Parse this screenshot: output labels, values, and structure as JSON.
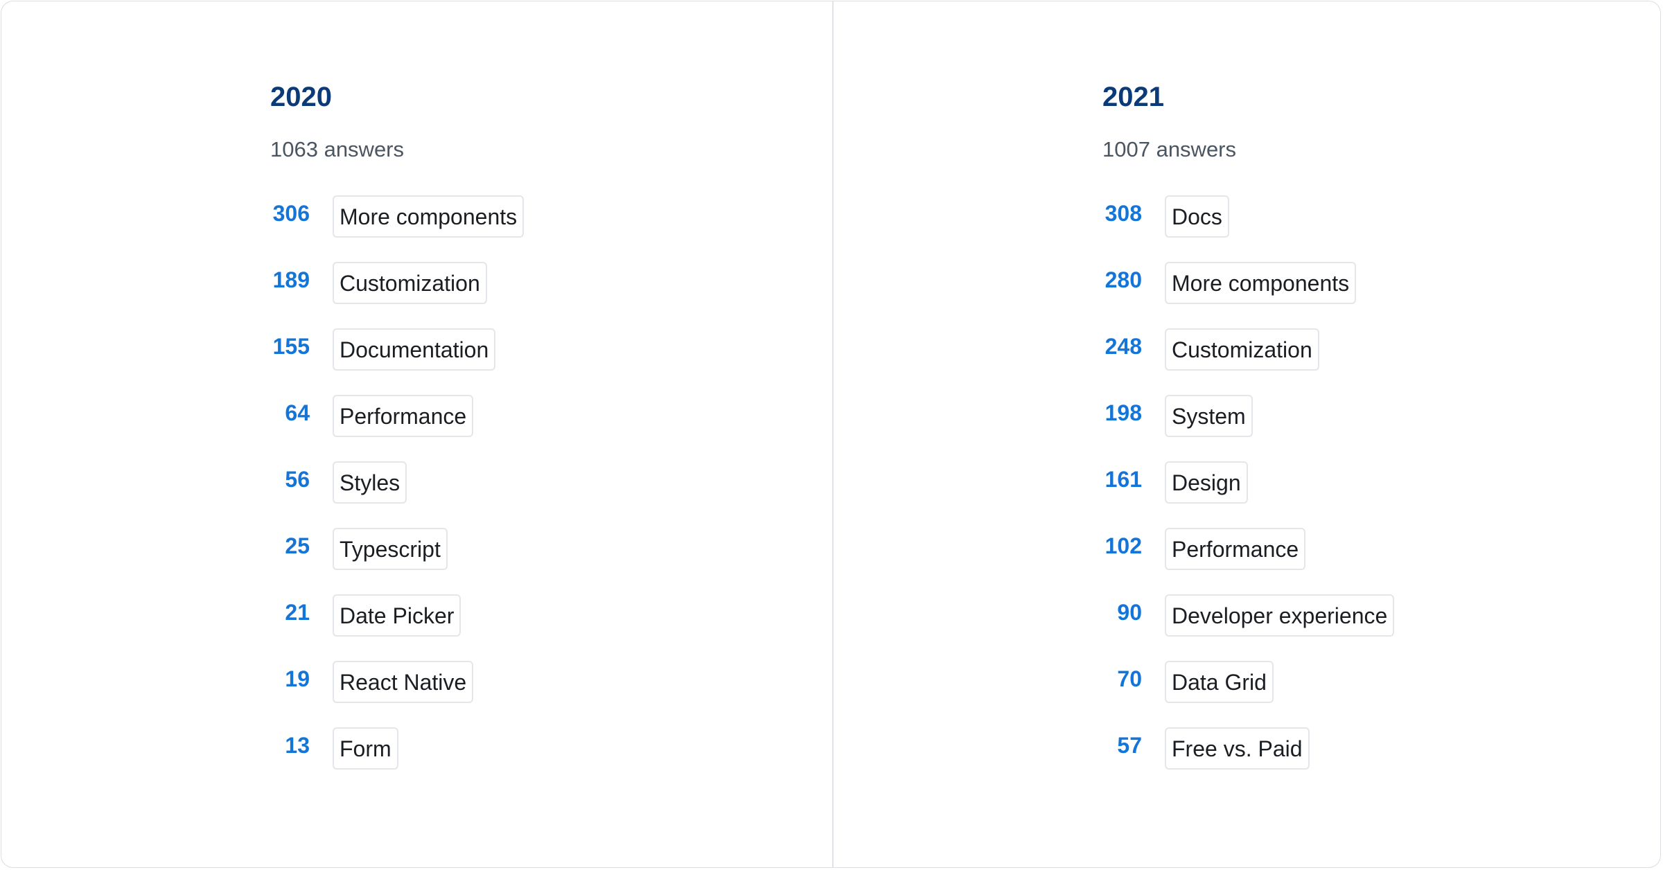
{
  "columns": [
    {
      "title": "2020",
      "subtitle": "1063 answers",
      "items": [
        {
          "count": 306,
          "label": "More components"
        },
        {
          "count": 189,
          "label": "Customization"
        },
        {
          "count": 155,
          "label": "Documentation"
        },
        {
          "count": 64,
          "label": "Performance"
        },
        {
          "count": 56,
          "label": "Styles"
        },
        {
          "count": 25,
          "label": "Typescript"
        },
        {
          "count": 21,
          "label": "Date Picker"
        },
        {
          "count": 19,
          "label": "React Native"
        },
        {
          "count": 13,
          "label": "Form"
        }
      ]
    },
    {
      "title": "2021",
      "subtitle": "1007 answers",
      "items": [
        {
          "count": 308,
          "label": "Docs"
        },
        {
          "count": 280,
          "label": "More components"
        },
        {
          "count": 248,
          "label": "Customization"
        },
        {
          "count": 198,
          "label": "System"
        },
        {
          "count": 161,
          "label": "Design"
        },
        {
          "count": 102,
          "label": "Performance"
        },
        {
          "count": 90,
          "label": "Developer experience"
        },
        {
          "count": 70,
          "label": "Data Grid"
        },
        {
          "count": 57,
          "label": "Free vs. Paid"
        }
      ]
    }
  ]
}
